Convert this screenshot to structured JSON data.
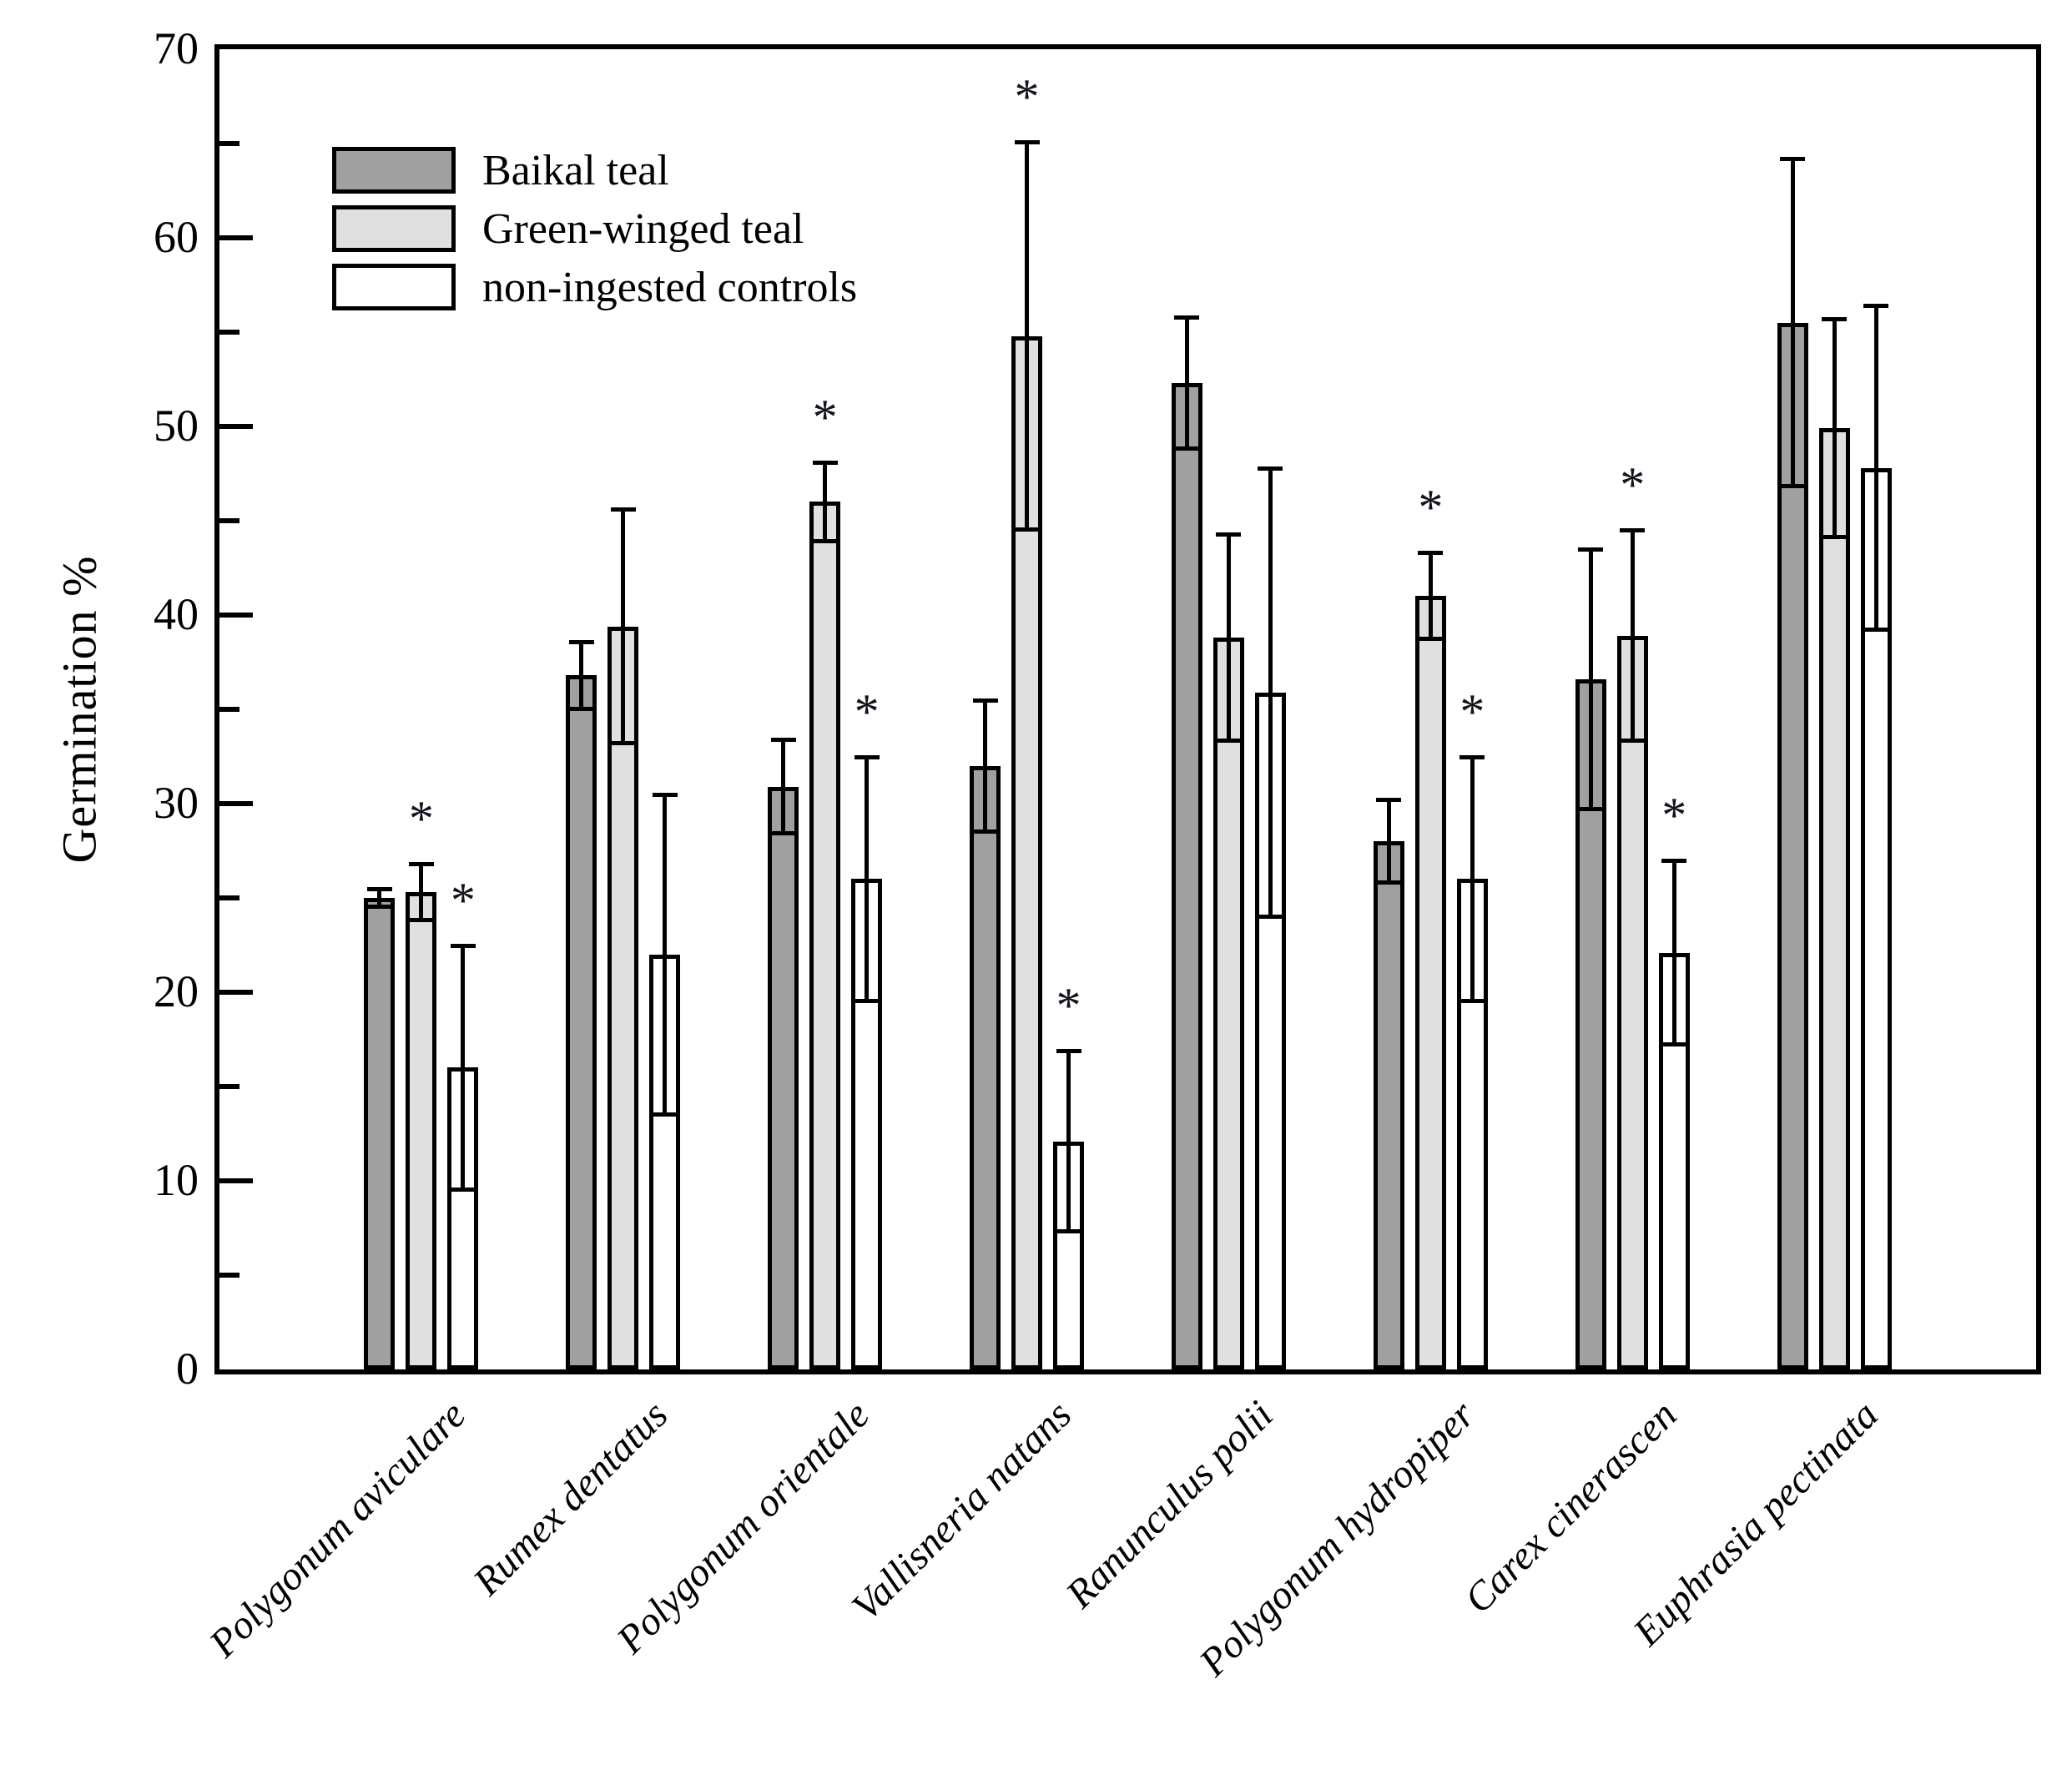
{
  "chart_data": {
    "type": "bar",
    "title": "",
    "ylabel": "Germination %",
    "xlabel": "",
    "ylim": [
      0,
      70
    ],
    "y_major_ticks": [
      0,
      10,
      20,
      30,
      40,
      50,
      60,
      70
    ],
    "y_minor_tick_step": 5,
    "grid": false,
    "legend_position": "top-left-inside",
    "sig_marker": "*",
    "categories": [
      "Polygonum aviculare",
      "Rumex dentatus",
      "Polygonum orientale",
      "Vallisneria natans",
      "Ranunculus polii",
      "Polygonum hydropiper",
      "Carex cinerascen",
      "Euphrasia pectinata"
    ],
    "series": [
      {
        "name": "Baikal teal",
        "color": "#a0a0a0",
        "values": [
          25.0,
          36.8,
          30.9,
          32.0,
          52.3,
          28.0,
          36.6,
          55.5
        ],
        "errors": [
          0.5,
          1.8,
          2.5,
          3.5,
          3.5,
          2.2,
          6.9,
          8.7
        ],
        "significant": [
          false,
          false,
          false,
          false,
          false,
          false,
          false,
          false
        ]
      },
      {
        "name": "Green-winged teal",
        "color": "#e0e0e0",
        "values": [
          25.3,
          39.4,
          46.0,
          54.8,
          38.8,
          41.0,
          38.9,
          49.9
        ],
        "errors": [
          1.5,
          6.2,
          2.1,
          10.3,
          5.5,
          2.3,
          5.6,
          5.8
        ],
        "significant": [
          true,
          false,
          true,
          true,
          false,
          true,
          true,
          false
        ]
      },
      {
        "name": "non-ingested controls",
        "color": "#ffffff",
        "values": [
          16.0,
          22.0,
          26.0,
          12.1,
          35.9,
          26.0,
          22.1,
          47.8
        ],
        "errors": [
          6.5,
          8.5,
          6.5,
          4.8,
          11.9,
          6.5,
          4.9,
          8.6
        ],
        "significant": [
          true,
          false,
          true,
          true,
          false,
          true,
          true,
          false
        ]
      }
    ]
  }
}
